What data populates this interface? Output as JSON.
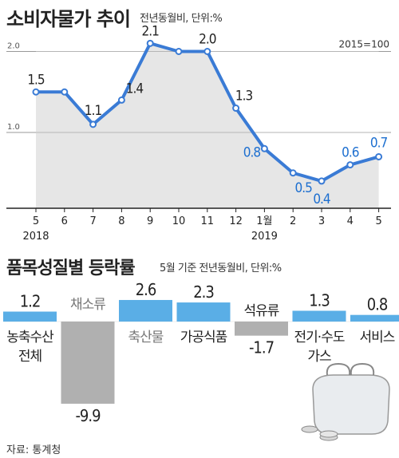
{
  "line_title": "소비자물가 추이",
  "line_subtitle": "전년동월비, 단위:%",
  "bar_title": "품목성질별 등락률",
  "bar_subtitle": "5월 기준 전년동월비, 단위:%",
  "source": "자료: 통계청",
  "colors": {
    "line": "#3a7bd5",
    "bar_positive": "#5aaee6",
    "bar_negative": "#b0b0b0",
    "area_fill": "#e2e2e2",
    "highlight_label": "#1d6fd0"
  },
  "chart_data": [
    {
      "type": "line",
      "title": "소비자물가 추이",
      "subtitle": "전년동월비, 단위:%",
      "base_note": "2015=100",
      "x": [
        "5",
        "6",
        "7",
        "8",
        "9",
        "10",
        "11",
        "12",
        "1월",
        "2",
        "3",
        "4",
        "5"
      ],
      "year_labels": [
        {
          "at": "5",
          "text": "2018"
        },
        {
          "at": "1월",
          "text": "2019"
        }
      ],
      "series": [
        {
          "values": [
            1.5,
            1.5,
            1.1,
            1.4,
            2.1,
            2.0,
            2.0,
            1.3,
            0.8,
            0.5,
            0.4,
            0.6,
            0.7
          ]
        }
      ],
      "data_labels": [
        {
          "index": 0,
          "text": "1.5"
        },
        {
          "index": 2,
          "text": "1.1"
        },
        {
          "index": 3,
          "text": "1.4"
        },
        {
          "index": 4,
          "text": "2.1"
        },
        {
          "index": 6,
          "text": "2.0"
        },
        {
          "index": 7,
          "text": "1.3"
        },
        {
          "index": 8,
          "text": "0.8"
        },
        {
          "index": 9,
          "text": "0.5"
        },
        {
          "index": 10,
          "text": "0.4"
        },
        {
          "index": 11,
          "text": "0.6"
        },
        {
          "index": 12,
          "text": "0.7"
        }
      ],
      "yticks": [
        {
          "value": 2.0,
          "label": "2.0"
        },
        {
          "value": 1.0,
          "label": "1.0"
        }
      ],
      "ylim": [
        0.1,
        2.3
      ],
      "area": true
    },
    {
      "type": "bar",
      "title": "품목성질별 등락률",
      "subtitle": "5월 기준 전년동월비, 단위:%",
      "categories": [
        {
          "lines": [
            "농축수산",
            "전체"
          ]
        },
        {
          "lines": [
            "채소류"
          ]
        },
        {
          "lines": [
            "축산물"
          ]
        },
        {
          "lines": [
            "가공식품"
          ]
        },
        {
          "lines": [
            "석유류"
          ]
        },
        {
          "lines": [
            "전기·수도",
            "가스"
          ]
        },
        {
          "lines": [
            "서비스"
          ]
        }
      ],
      "values": [
        1.2,
        -9.9,
        2.6,
        2.3,
        -1.7,
        1.3,
        0.8
      ],
      "value_labels": [
        "1.2",
        "-9.9",
        "2.6",
        "2.3",
        "-1.7",
        "1.3",
        "0.8"
      ]
    }
  ]
}
